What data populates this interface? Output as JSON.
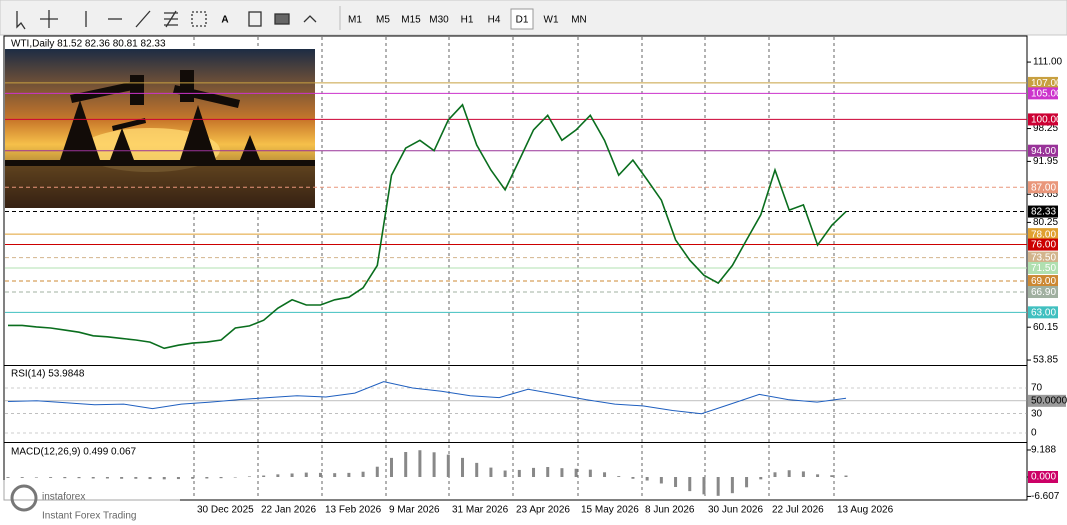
{
  "toolbar": {
    "text_tool": "A",
    "timeframes": [
      "M1",
      "M5",
      "M15",
      "M30",
      "H1",
      "H4",
      "D1",
      "W1",
      "MN"
    ],
    "active": "D1"
  },
  "chart": {
    "header": "WTI,Daily  81.52 82.36 80.81 82.33",
    "ylim": [
      52.9,
      116.0
    ],
    "yticks": [
      {
        "value": 111,
        "label": "111.00"
      },
      98.25,
      91.95,
      85.65,
      80.25,
      60.15,
      53.85
    ],
    "levels": [
      {
        "value": 107,
        "label": "107.00",
        "color": "#c8a040",
        "style": "solid"
      },
      {
        "value": 105,
        "label": "105.00",
        "color": "#cc33cc",
        "style": "solid"
      },
      {
        "value": 100,
        "label": "100.00",
        "color": "#cc0033",
        "style": "solid"
      },
      {
        "value": 94,
        "label": "94.00",
        "color": "#993399",
        "style": "solid"
      },
      {
        "value": 87,
        "label": "87.00",
        "color": "#e9967a",
        "style": "dashed"
      },
      {
        "value": 78,
        "label": "78.00",
        "color": "#e0a030",
        "style": "solid"
      },
      {
        "value": 76,
        "label": "76.00",
        "color": "#cc0000",
        "style": "solid"
      },
      {
        "value": 73.5,
        "label": "73.50",
        "color": "#d2b48c",
        "style": "dashed"
      },
      {
        "value": 71.5,
        "label": "71.50",
        "color": "#b0e0b0",
        "style": "solid"
      },
      {
        "value": 69,
        "label": "69.00",
        "color": "#cc8833",
        "style": "dashed"
      },
      {
        "value": 66.9,
        "label": "66.90",
        "color": "#a0b0a0",
        "style": "dashed"
      },
      {
        "value": 63,
        "label": "63.00",
        "color": "#40c0c0",
        "style": "solid"
      }
    ],
    "current": {
      "value": 82.33,
      "label": "82.33",
      "color": "#000000"
    },
    "close": [
      60.5,
      60.5,
      60.2,
      60,
      59.6,
      59.2,
      58.5,
      58.3,
      58,
      57.7,
      57.3,
      56.1,
      56.7,
      57.1,
      57.3,
      57.7,
      60,
      60.4,
      61.5,
      63.8,
      65.4,
      64.4,
      64.4,
      65.4,
      65.9,
      67.7,
      72,
      89.3,
      94.5,
      96,
      94,
      99.9,
      102.8,
      95.1,
      90.3,
      86.5,
      92.2,
      98,
      100.8,
      96,
      98,
      100.8,
      96,
      89.3,
      92.2,
      88.4,
      84.5,
      76.9,
      73,
      70.1,
      68.6,
      72,
      76.9,
      81.7,
      90.3,
      82.6,
      83.6,
      75.9,
      79.7,
      82.33
    ],
    "line_color": "#0a6e1e"
  },
  "rsi": {
    "label": "RSI(14) 53.9848",
    "ylim": [
      -10.9,
      104.2
    ],
    "yticks": [
      70,
      {
        "value": 50,
        "label": "50.0000"
      },
      30,
      0
    ],
    "values": [
      49,
      50,
      47,
      44,
      45,
      38,
      45,
      48,
      52,
      55,
      58,
      56,
      62,
      80,
      70,
      65,
      58,
      55,
      68,
      60,
      52,
      45,
      42,
      35,
      30,
      45,
      60,
      52,
      48,
      53.98
    ],
    "color": "#1f5fbf"
  },
  "macd": {
    "label": "MACD(12,26,9) 0.499 0.067",
    "ylim": [
      -7.48,
      11.22
    ],
    "yticks": [
      9.188,
      {
        "value": 0,
        "label": "0.000"
      },
      -6.607
    ],
    "values": [
      -0.3,
      -0.3,
      -0.2,
      -0.3,
      -0.4,
      -0.4,
      -0.5,
      -0.5,
      -0.6,
      -0.6,
      -0.7,
      -0.8,
      -0.7,
      -0.6,
      -0.5,
      -0.4,
      -0.1,
      0.2,
      0.5,
      0.9,
      1.2,
      1.5,
      1.4,
      1.3,
      1.4,
      1.8,
      3.5,
      6.5,
      8.5,
      9.1,
      8.4,
      7.6,
      6.5,
      4.8,
      3.2,
      2.2,
      2.4,
      3.1,
      3.4,
      3.0,
      2.8,
      2.5,
      1.6,
      0.3,
      -0.6,
      -1.2,
      -2.2,
      -3.4,
      -4.8,
      -5.9,
      -6.4,
      -5.5,
      -3.5,
      -0.8,
      1.6,
      2.3,
      1.9,
      0.9,
      0.6,
      0.499
    ],
    "color": "#888888"
  },
  "x_axis": {
    "labels": [
      "30 Dec 2025",
      "22 Jan 2026",
      "13 Feb 2026",
      "9 Mar 2026",
      "31 Mar 2026",
      "23 Apr 2026",
      "15 May 2026",
      "8 Jun 2026",
      "30 Jun 2026",
      "22 Jul 2026",
      "13 Aug 2026"
    ]
  },
  "watermark": {
    "brand": "instaforex",
    "tagline": "Instant Forex Trading"
  }
}
